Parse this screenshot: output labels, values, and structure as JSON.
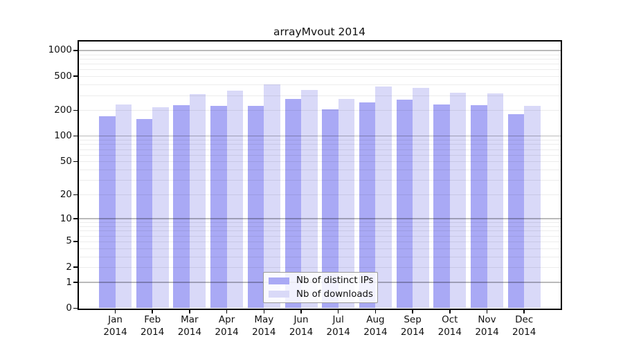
{
  "chart_data": {
    "type": "bar",
    "title": "arrayMvout 2014",
    "categories": [
      "Jan",
      "Feb",
      "Mar",
      "Apr",
      "May",
      "Jun",
      "Jul",
      "Aug",
      "Sep",
      "Oct",
      "Nov",
      "Dec"
    ],
    "category_year_line": "2014",
    "series": [
      {
        "name": "Nb of distinct IPs",
        "color": "#a9a9f5",
        "values": [
          170,
          159,
          229,
          226,
          225,
          271,
          206,
          248,
          268,
          233,
          228,
          179
        ]
      },
      {
        "name": "Nb of downloads",
        "color": "#d9d9f8",
        "values": [
          234,
          218,
          312,
          338,
          400,
          349,
          274,
          378,
          364,
          322,
          316,
          225
        ]
      }
    ],
    "y_axis": {
      "scale": "log10(value+1)",
      "range": [
        0,
        1000
      ],
      "tick_labels": [
        1000,
        500,
        200,
        100,
        50,
        20,
        10,
        5,
        2,
        1,
        0
      ]
    },
    "gridlines": {
      "major": [
        1,
        10,
        100,
        1000
      ],
      "minor": [
        2,
        3,
        4,
        5,
        6,
        7,
        8,
        9,
        20,
        30,
        40,
        50,
        60,
        70,
        80,
        90,
        200,
        300,
        400,
        500,
        600,
        700,
        800,
        900
      ]
    },
    "legend": {
      "position": "bottom-center"
    },
    "grid": "on"
  }
}
